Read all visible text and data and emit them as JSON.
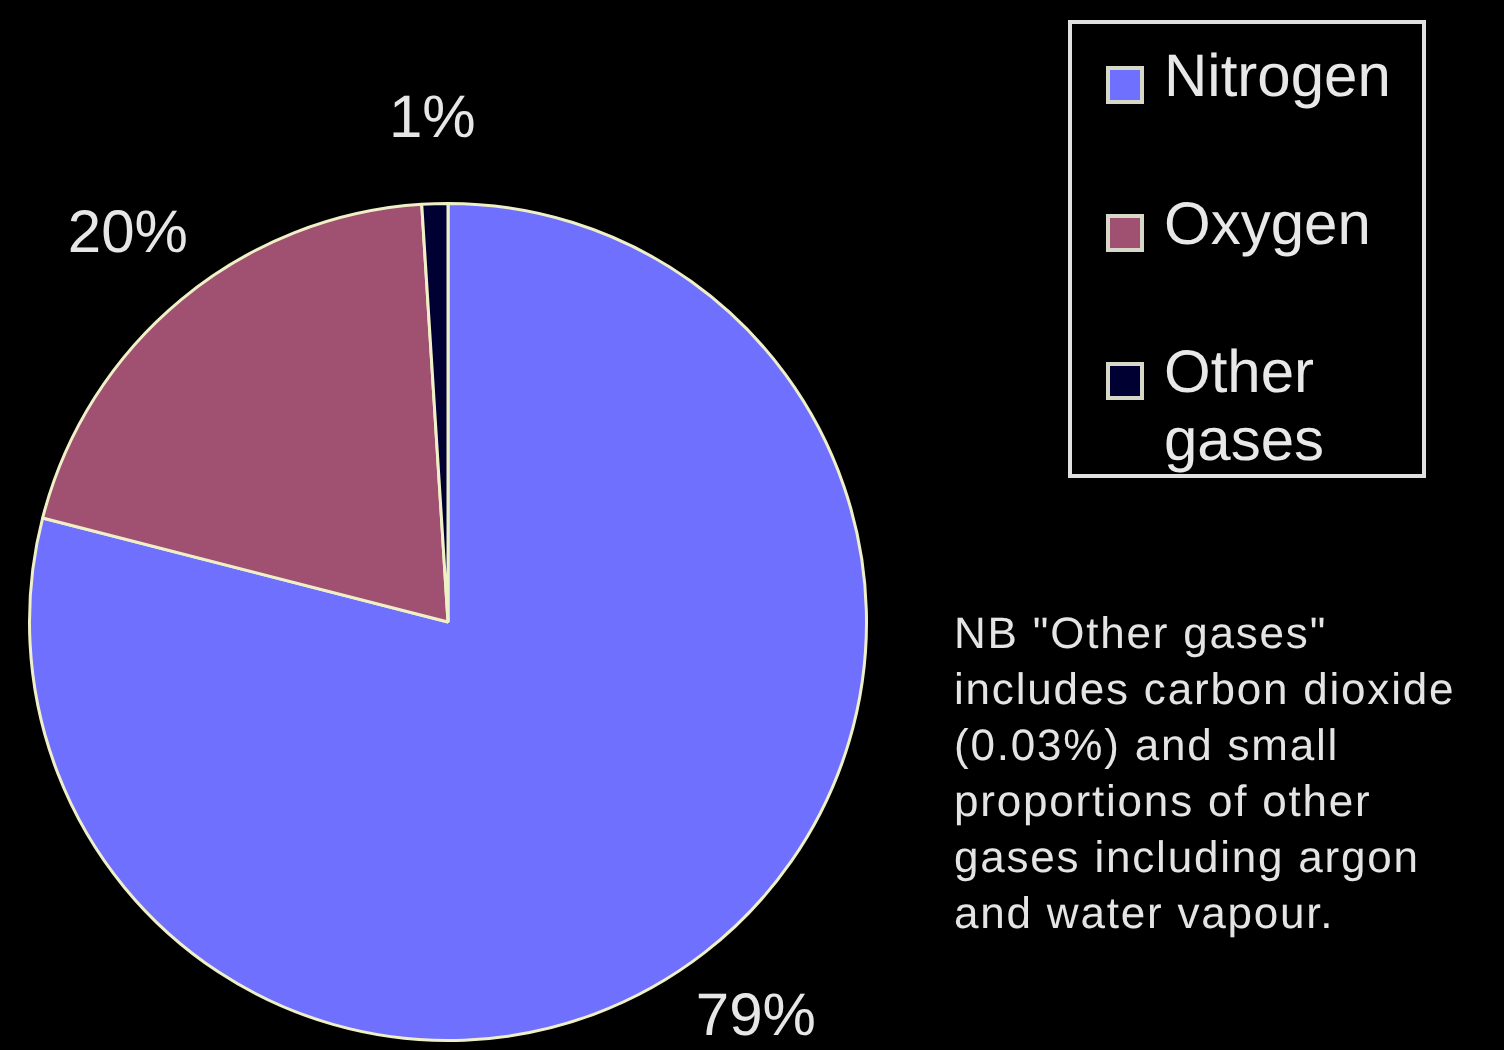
{
  "chart_data": {
    "type": "pie",
    "categories": [
      "Nitrogen",
      "Oxygen",
      "Other gases"
    ],
    "values": [
      79,
      20,
      1
    ],
    "colors": [
      "#7070ff",
      "#a05070",
      "#000033"
    ],
    "value_labels": [
      "79%",
      "20%",
      "1%"
    ],
    "legend": "top right",
    "annotations": [
      "NB \"Other gases\" includes carbon dioxide (0.03%) and small proportions of other gases including argon and water vapour."
    ]
  }
}
